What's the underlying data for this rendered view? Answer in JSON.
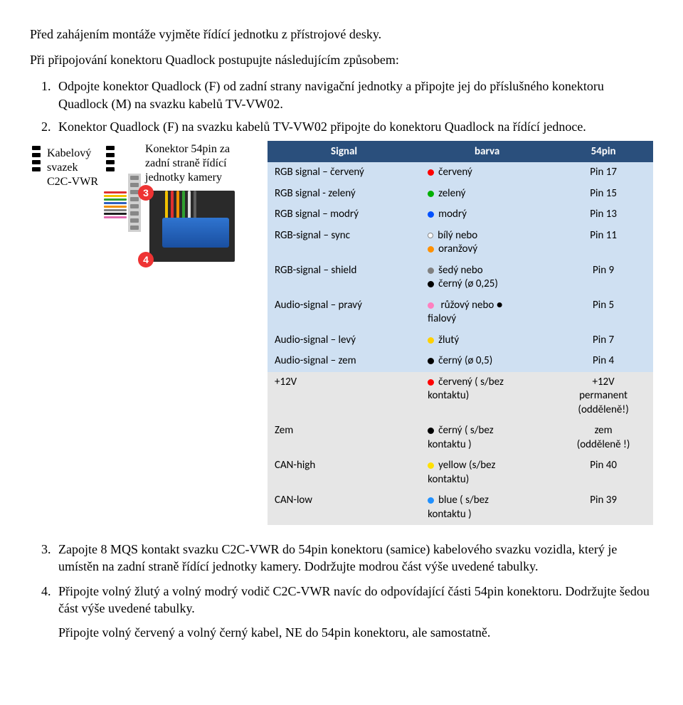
{
  "intro": "Před zahájením montáže vyjměte řídící jednotku z přístrojové desky.",
  "subintro": "Při připojování konektoru Quadlock postupujte následujícím způsobem:",
  "steps12": [
    "Odpojte konektor Quadlock (F) od zadní strany navigační jednotky a připojte jej do příslušného konektoru Quadlock (M) na svazku kabelů TV-VW02.",
    "Konektor Quadlock (F) na svazku kabelů TV-VW02 připojte do konektoru Quadlock na řídící jednoce."
  ],
  "harness_label_l1": "Kabelový",
  "harness_label_l2": "svazek",
  "harness_label_l3": "C2C-VWR",
  "conn_label_l1": "Konektor 54pin za",
  "conn_label_l2": "zadní straně řídící",
  "conn_label_l3": "jednotky kamery",
  "marker3": "3",
  "marker4": "4",
  "wire_colors": [
    "#e03030",
    "#f2c200",
    "#30a030",
    "#3060c0",
    "#f09000",
    "#808080",
    "#202020",
    "#e06ab0"
  ],
  "table": {
    "header_bg": "#2a4f7c",
    "band_blue": "#cfe0f2",
    "band_grey": "#e6e6e6",
    "cols": {
      "signal": "Signal",
      "barva": "barva",
      "pin": "54pin"
    },
    "rows": [
      {
        "band": "blue",
        "signal": "RGB signal – červený",
        "color_lines": [
          {
            "dot": "#ff0000",
            "text": "červený"
          }
        ],
        "pin": "Pin 17"
      },
      {
        "band": "blue",
        "signal": "RGB signal - zelený",
        "color_lines": [
          {
            "dot": "#00b000",
            "text": "zelený"
          }
        ],
        "pin": "Pin 15"
      },
      {
        "band": "blue",
        "signal": "RGB signal – modrý",
        "color_lines": [
          {
            "dot": "#0050ff",
            "text": "modrý"
          }
        ],
        "pin": "Pin 13"
      },
      {
        "band": "blue",
        "signal": "RGB-signal – sync",
        "color_lines": [
          {
            "dot": "outline",
            "text": "bílý nebo"
          },
          {
            "dot": "#ff9000",
            "text": "oranžový"
          }
        ],
        "pin": "Pin 11"
      },
      {
        "band": "blue",
        "signal": "RGB-signal – shield",
        "color_lines": [
          {
            "dot": "#808080",
            "text": "šedý nebo"
          },
          {
            "dot": "#000000",
            "text": "černý (ø 0,25)"
          }
        ],
        "pin": "Pin 9"
      },
      {
        "band": "blue",
        "signal": "Audio-signal – pravý",
        "color_lines": [
          {
            "dot": "#ff80c0",
            "text": " růžový nebo ●"
          },
          {
            "dot": null,
            "text": "fialový"
          }
        ],
        "pin": "Pin 5"
      },
      {
        "band": "blue",
        "signal": "Audio-signal – levý",
        "color_lines": [
          {
            "dot": "#ffd000",
            "text": "žlutý"
          }
        ],
        "pin": "Pin 7"
      },
      {
        "band": "blue",
        "signal": "Audio-signal – zem",
        "color_lines": [
          {
            "dot": "#000000",
            "text": "černý (ø 0,5)"
          }
        ],
        "pin": "Pin 4"
      },
      {
        "band": "grey",
        "signal": " +12V",
        "color_lines": [
          {
            "dot": "#ff0000",
            "text": "červený ( s/bez"
          },
          {
            "dot": null,
            "text": "kontaktu)"
          }
        ],
        "pin": "+12V permanent (odděleně!)"
      },
      {
        "band": "grey",
        "signal": "Zem",
        "color_lines": [
          {
            "dot": "#000000",
            "text": "černý ( s/bez"
          },
          {
            "dot": null,
            "text": "kontaktu )"
          }
        ],
        "pin": "zem (odděleně !)"
      },
      {
        "band": "grey",
        "signal": "CAN-high",
        "color_lines": [
          {
            "dot": "#ffe000",
            "text": "yellow (s/bez"
          },
          {
            "dot": null,
            "text": "kontaktu)"
          }
        ],
        "pin": "Pin 40"
      },
      {
        "band": "grey",
        "signal": "CAN-low",
        "color_lines": [
          {
            "dot": "#2090ff",
            "text": "blue ( s/bez"
          },
          {
            "dot": null,
            "text": "kontaktu )"
          }
        ],
        "pin": "Pin 39"
      }
    ]
  },
  "steps34": [
    "Zapojte 8 MQS kontakt svazku C2C-VWR do 54pin konektoru (samice) kabelového svazku vozidla, který je umístěn na zadní straně řídící jednotky kamery. Dodržujte modrou část výše uvedené tabulky.",
    "Připojte volný žlutý a volný modrý vodič C2C-VWR navíc do odpovídající části 54pin konektoru. Dodržujte šedou část výše uvedené tabulky."
  ],
  "final_note": "Připojte volný červený a volný černý kabel, NE do 54pin konektoru, ale samostatně."
}
